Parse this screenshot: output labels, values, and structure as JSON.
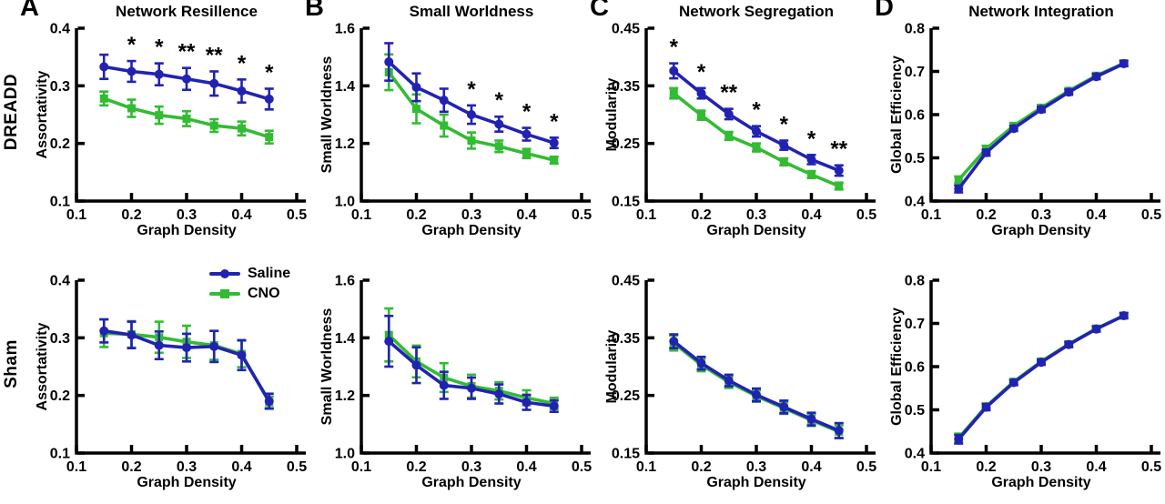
{
  "figure": {
    "background": "#ffffff",
    "row_labels": [
      "DREADD",
      "Sham"
    ],
    "panel_letters": [
      "A",
      "B",
      "C",
      "D"
    ],
    "legend": {
      "position": "top-right-of-sham-assortativity-panel",
      "items": [
        {
          "label": "Saline",
          "color": "#2222b2",
          "marker": "circle"
        },
        {
          "label": "CNO",
          "color": "#33bb33",
          "marker": "square"
        }
      ]
    }
  },
  "chart_data": [
    {
      "type": "line",
      "panel_letter": "A",
      "title": "Network Resillence",
      "row": "DREADD",
      "xlabel": "Graph Density",
      "ylabel": "Assortativity",
      "x": [
        0.15,
        0.2,
        0.25,
        0.3,
        0.35,
        0.4,
        0.45
      ],
      "xlim": [
        0.1,
        0.5
      ],
      "xticks": [
        "0.1",
        "0.2",
        "0.3",
        "0.4",
        "0.5"
      ],
      "ylim": [
        0.1,
        0.4
      ],
      "yticks": [
        "0.1",
        "0.2",
        "0.3",
        "0.4"
      ],
      "series": [
        {
          "name": "Saline",
          "color": "#2222b2",
          "marker": "circle",
          "values": [
            0.333,
            0.325,
            0.32,
            0.312,
            0.304,
            0.291,
            0.277
          ],
          "errors": [
            0.021,
            0.018,
            0.019,
            0.019,
            0.021,
            0.02,
            0.018
          ]
        },
        {
          "name": "CNO",
          "color": "#33bb33",
          "marker": "square",
          "values": [
            0.278,
            0.261,
            0.249,
            0.243,
            0.231,
            0.226,
            0.211
          ],
          "errors": [
            0.012,
            0.015,
            0.015,
            0.013,
            0.011,
            0.012,
            0.011
          ]
        }
      ],
      "significance": [
        "",
        "*",
        "*",
        "**",
        "**",
        "*",
        "*"
      ]
    },
    {
      "type": "line",
      "panel_letter": "B",
      "title": "Small Worldness",
      "row": "DREADD",
      "xlabel": "Graph Density",
      "ylabel": "Small Worldness",
      "x": [
        0.15,
        0.2,
        0.25,
        0.3,
        0.35,
        0.4,
        0.45
      ],
      "xlim": [
        0.1,
        0.5
      ],
      "xticks": [
        "0.1",
        "0.2",
        "0.3",
        "0.4",
        "0.5"
      ],
      "ylim": [
        1.0,
        1.6
      ],
      "yticks": [
        "1.0",
        "1.2",
        "1.4",
        "1.6"
      ],
      "series": [
        {
          "name": "Saline",
          "color": "#2222b2",
          "marker": "circle",
          "values": [
            1.483,
            1.395,
            1.35,
            1.3,
            1.267,
            1.232,
            1.202
          ],
          "errors": [
            0.065,
            0.048,
            0.04,
            0.032,
            0.026,
            0.022,
            0.018
          ]
        },
        {
          "name": "CNO",
          "color": "#33bb33",
          "marker": "square",
          "values": [
            1.447,
            1.32,
            1.262,
            1.21,
            1.19,
            1.165,
            1.142
          ],
          "errors": [
            0.062,
            0.05,
            0.038,
            0.028,
            0.02,
            0.016,
            0.012
          ]
        }
      ],
      "significance": [
        "",
        "",
        "",
        "*",
        "*",
        "*",
        "*"
      ]
    },
    {
      "type": "line",
      "panel_letter": "C",
      "title": "Network Segregation",
      "row": "DREADD",
      "xlabel": "Graph Density",
      "ylabel": "Modularity",
      "x": [
        0.15,
        0.2,
        0.25,
        0.3,
        0.35,
        0.4,
        0.45
      ],
      "xlim": [
        0.1,
        0.5
      ],
      "xticks": [
        "0.1",
        "0.2",
        "0.3",
        "0.4",
        "0.5"
      ],
      "ylim": [
        0.15,
        0.45
      ],
      "yticks": [
        "0.15",
        "0.25",
        "0.35",
        "0.45"
      ],
      "series": [
        {
          "name": "Saline",
          "color": "#2222b2",
          "marker": "circle",
          "values": [
            0.376,
            0.337,
            0.301,
            0.271,
            0.247,
            0.222,
            0.203
          ],
          "errors": [
            0.013,
            0.009,
            0.009,
            0.009,
            0.008,
            0.008,
            0.009
          ]
        },
        {
          "name": "CNO",
          "color": "#33bb33",
          "marker": "square",
          "values": [
            0.337,
            0.299,
            0.263,
            0.243,
            0.218,
            0.196,
            0.176
          ],
          "errors": [
            0.009,
            0.008,
            0.007,
            0.007,
            0.006,
            0.006,
            0.006
          ]
        }
      ],
      "significance": [
        "*",
        "*",
        "**",
        "*",
        "*",
        "*",
        "**"
      ]
    },
    {
      "type": "line",
      "panel_letter": "D",
      "title": "Network Integration",
      "row": "DREADD",
      "xlabel": "Graph Density",
      "ylabel": "Global Efficiency",
      "x": [
        0.15,
        0.2,
        0.25,
        0.3,
        0.35,
        0.4,
        0.45
      ],
      "xlim": [
        0.1,
        0.5
      ],
      "xticks": [
        "0.1",
        "0.2",
        "0.3",
        "0.4",
        "0.5"
      ],
      "ylim": [
        0.4,
        0.8
      ],
      "yticks": [
        "0.4",
        "0.5",
        "0.6",
        "0.7",
        "0.8"
      ],
      "series": [
        {
          "name": "Saline",
          "color": "#2222b2",
          "marker": "circle",
          "values": [
            0.428,
            0.512,
            0.568,
            0.612,
            0.652,
            0.688,
            0.718
          ],
          "errors": [
            0.008,
            0.007,
            0.006,
            0.006,
            0.006,
            0.006,
            0.006
          ]
        },
        {
          "name": "CNO",
          "color": "#33bb33",
          "marker": "square",
          "values": [
            0.449,
            0.521,
            0.574,
            0.616,
            0.655,
            0.69,
            0.719
          ],
          "errors": [
            0.008,
            0.007,
            0.006,
            0.006,
            0.006,
            0.006,
            0.006
          ]
        }
      ],
      "significance": [
        "",
        "",
        "",
        "",
        "",
        "",
        ""
      ]
    },
    {
      "type": "line",
      "title": "",
      "row": "Sham",
      "xlabel": "Graph Density",
      "ylabel": "Assortativity",
      "x": [
        0.15,
        0.2,
        0.25,
        0.3,
        0.35,
        0.4,
        0.45
      ],
      "xlim": [
        0.1,
        0.5
      ],
      "xticks": [
        "0.1",
        "0.2",
        "0.3",
        "0.4",
        "0.5"
      ],
      "ylim": [
        0.1,
        0.4
      ],
      "yticks": [
        "0.1",
        "0.2",
        "0.3",
        "0.4"
      ],
      "show_legend": true,
      "series": [
        {
          "name": "Saline",
          "color": "#2222b2",
          "marker": "circle",
          "values": [
            0.312,
            0.305,
            0.287,
            0.283,
            0.285,
            0.27,
            0.19
          ],
          "errors": [
            0.02,
            0.023,
            0.024,
            0.024,
            0.027,
            0.026,
            0.013
          ]
        },
        {
          "name": "CNO",
          "color": "#33bb33",
          "marker": "square",
          "values": [
            0.308,
            0.306,
            0.301,
            0.293,
            0.287,
            0.272,
            0.188
          ],
          "errors": [
            0.024,
            0.023,
            0.027,
            0.028,
            0.025,
            0.023,
            0.01
          ]
        }
      ],
      "significance": [
        "",
        "",
        "",
        "",
        "",
        "",
        ""
      ]
    },
    {
      "type": "line",
      "title": "",
      "row": "Sham",
      "xlabel": "Graph Density",
      "ylabel": "Small Worldness",
      "x": [
        0.15,
        0.2,
        0.25,
        0.3,
        0.35,
        0.4,
        0.45
      ],
      "xlim": [
        0.1,
        0.5
      ],
      "xticks": [
        "0.1",
        "0.2",
        "0.3",
        "0.4",
        "0.5"
      ],
      "ylim": [
        1.0,
        1.6
      ],
      "yticks": [
        "1.0",
        "1.2",
        "1.4",
        "1.6"
      ],
      "series": [
        {
          "name": "Saline",
          "color": "#2222b2",
          "marker": "circle",
          "values": [
            1.388,
            1.305,
            1.235,
            1.225,
            1.205,
            1.176,
            1.163
          ],
          "errors": [
            0.088,
            0.062,
            0.047,
            0.037,
            0.033,
            0.026,
            0.02
          ]
        },
        {
          "name": "CNO",
          "color": "#33bb33",
          "marker": "square",
          "values": [
            1.41,
            1.318,
            1.262,
            1.232,
            1.216,
            1.192,
            1.172
          ],
          "errors": [
            0.092,
            0.055,
            0.05,
            0.04,
            0.03,
            0.026,
            0.02
          ]
        }
      ],
      "significance": [
        "",
        "",
        "",
        "",
        "",
        "",
        ""
      ]
    },
    {
      "type": "line",
      "title": "",
      "row": "Sham",
      "xlabel": "Graph Density",
      "ylabel": "Modularity",
      "x": [
        0.15,
        0.2,
        0.25,
        0.3,
        0.35,
        0.4,
        0.45
      ],
      "xlim": [
        0.1,
        0.5
      ],
      "xticks": [
        "0.1",
        "0.2",
        "0.3",
        "0.4",
        "0.5"
      ],
      "ylim": [
        0.15,
        0.45
      ],
      "yticks": [
        "0.15",
        "0.25",
        "0.35",
        "0.45"
      ],
      "series": [
        {
          "name": "Saline",
          "color": "#2222b2",
          "marker": "circle",
          "values": [
            0.344,
            0.306,
            0.276,
            0.251,
            0.23,
            0.209,
            0.189
          ],
          "errors": [
            0.012,
            0.011,
            0.01,
            0.011,
            0.011,
            0.011,
            0.013
          ]
        },
        {
          "name": "CNO",
          "color": "#33bb33",
          "marker": "square",
          "values": [
            0.341,
            0.303,
            0.273,
            0.249,
            0.228,
            0.207,
            0.187
          ],
          "errors": [
            0.013,
            0.011,
            0.01,
            0.01,
            0.01,
            0.01,
            0.011
          ]
        }
      ],
      "significance": [
        "",
        "",
        "",
        "",
        "",
        "",
        ""
      ]
    },
    {
      "type": "line",
      "title": "",
      "row": "Sham",
      "xlabel": "Graph Density",
      "ylabel": "Global Efficiency",
      "x": [
        0.15,
        0.2,
        0.25,
        0.3,
        0.35,
        0.4,
        0.45
      ],
      "xlim": [
        0.1,
        0.5
      ],
      "xticks": [
        "0.1",
        "0.2",
        "0.3",
        "0.4",
        "0.5"
      ],
      "ylim": [
        0.4,
        0.8
      ],
      "yticks": [
        "0.4",
        "0.5",
        "0.6",
        "0.7",
        "0.8"
      ],
      "series": [
        {
          "name": "Saline",
          "color": "#2222b2",
          "marker": "circle",
          "values": [
            0.432,
            0.506,
            0.563,
            0.61,
            0.651,
            0.687,
            0.718
          ],
          "errors": [
            0.01,
            0.007,
            0.006,
            0.006,
            0.006,
            0.006,
            0.006
          ]
        },
        {
          "name": "CNO",
          "color": "#33bb33",
          "marker": "square",
          "values": [
            0.435,
            0.508,
            0.565,
            0.612,
            0.652,
            0.688,
            0.718
          ],
          "errors": [
            0.01,
            0.007,
            0.006,
            0.006,
            0.006,
            0.006,
            0.006
          ]
        }
      ],
      "significance": [
        "",
        "",
        "",
        "",
        "",
        "",
        ""
      ]
    }
  ]
}
